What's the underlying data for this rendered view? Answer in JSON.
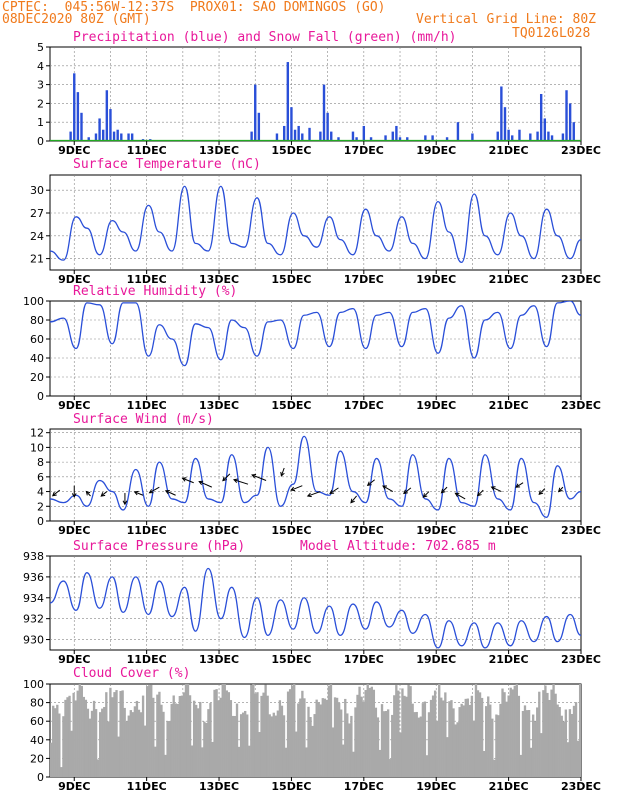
{
  "header": {
    "line1_left": "CPTEC:  045:56W-12:37S  PROX01: SAO DOMINGOS (GO)",
    "line2_left": "08DEC2020 80Z (GMT)",
    "line2_right": "Vertical Grid Line: 80Z",
    "code": "TQ0126L028"
  },
  "x_tick_labels": [
    "9DEC",
    "11DEC",
    "13DEC",
    "15DEC",
    "17DEC",
    "19DEC",
    "21DEC",
    "23DEC"
  ],
  "colors": {
    "header": "#f07a1c",
    "title": "#e8189a",
    "line": "#2a4fd8",
    "bar": "#2a4fd8",
    "snow": "#22aa22",
    "cloud": "#a9a9a9",
    "grid": "#888888"
  },
  "chart_data": [
    {
      "type": "bar",
      "title": "Precipitation (blue) and Snow Fall (green) (mm/h)",
      "ylim": [
        0,
        5
      ],
      "yticks": [
        0,
        1,
        2,
        3,
        4,
        5
      ],
      "x_range_days": [
        8.33,
        23.0
      ],
      "series": [
        {
          "name": "Precipitation",
          "x": [
            8.9,
            9.0,
            9.1,
            9.2,
            9.4,
            9.6,
            9.7,
            9.8,
            9.9,
            10.0,
            10.1,
            10.2,
            10.3,
            10.5,
            10.6,
            10.9,
            11.1,
            13.9,
            14.0,
            14.1,
            14.6,
            14.8,
            14.9,
            15.0,
            15.1,
            15.2,
            15.3,
            15.5,
            15.8,
            15.9,
            16.0,
            16.1,
            16.3,
            16.7,
            16.8,
            17.0,
            17.2,
            17.6,
            17.8,
            17.9,
            18.0,
            18.2,
            18.7,
            18.9,
            19.3,
            19.6,
            20.0,
            20.7,
            20.8,
            20.9,
            21.0,
            21.1,
            21.3,
            21.6,
            21.8,
            21.9,
            22.0,
            22.1,
            22.2,
            22.5,
            22.6,
            22.7,
            22.8
          ],
          "values": [
            0.5,
            3.6,
            2.6,
            1.5,
            0.2,
            0.4,
            1.2,
            0.6,
            2.7,
            1.7,
            0.5,
            0.6,
            0.4,
            0.4,
            0.4,
            0.1,
            0.1,
            0.5,
            3.0,
            1.5,
            0.4,
            0.8,
            4.2,
            1.8,
            0.6,
            0.8,
            0.4,
            0.7,
            0.5,
            3.0,
            1.5,
            0.5,
            0.2,
            0.5,
            0.2,
            0.8,
            0.2,
            0.3,
            0.5,
            0.8,
            0.2,
            0.2,
            0.3,
            0.3,
            0.2,
            1.0,
            0.4,
            0.5,
            2.9,
            1.8,
            0.6,
            0.3,
            0.6,
            0.4,
            0.5,
            2.5,
            1.2,
            0.5,
            0.3,
            0.4,
            2.7,
            2.0,
            1.0
          ]
        },
        {
          "name": "Snow Fall",
          "x": [],
          "values": []
        }
      ]
    },
    {
      "type": "line",
      "title": "Surface Temperature (nC)",
      "ylim": [
        19.5,
        32.0
      ],
      "yticks": [
        21,
        24,
        27,
        30
      ],
      "x": [
        8.33,
        8.7,
        9.05,
        9.35,
        9.7,
        10.05,
        10.35,
        10.7,
        11.05,
        11.35,
        11.7,
        12.05,
        12.35,
        12.7,
        13.05,
        13.35,
        13.7,
        14.05,
        14.35,
        14.7,
        15.05,
        15.35,
        15.7,
        16.05,
        16.35,
        16.7,
        17.05,
        17.35,
        17.7,
        18.05,
        18.35,
        18.7,
        19.05,
        19.35,
        19.7,
        20.05,
        20.35,
        20.7,
        21.05,
        21.35,
        21.7,
        22.05,
        22.35,
        22.7,
        23.0
      ],
      "values": [
        22.0,
        20.8,
        26.5,
        25.0,
        21.5,
        26.0,
        24.5,
        22.0,
        28.0,
        24.5,
        22.0,
        30.5,
        23.0,
        22.0,
        30.5,
        23.0,
        22.5,
        29.0,
        23.0,
        21.5,
        27.0,
        24.0,
        22.5,
        26.5,
        23.5,
        21.5,
        27.5,
        24.0,
        22.0,
        26.5,
        23.0,
        21.0,
        28.5,
        24.5,
        20.5,
        29.5,
        24.0,
        21.5,
        27.0,
        24.0,
        21.0,
        27.5,
        24.0,
        21.0,
        23.5
      ]
    },
    {
      "type": "line",
      "title": "Relative Humidity (%)",
      "ylim": [
        0,
        100
      ],
      "yticks": [
        0,
        20,
        40,
        60,
        80,
        100
      ],
      "x": [
        8.33,
        8.7,
        9.05,
        9.35,
        9.7,
        10.05,
        10.35,
        10.7,
        11.05,
        11.35,
        11.7,
        12.05,
        12.35,
        12.7,
        13.05,
        13.35,
        13.7,
        14.05,
        14.35,
        14.7,
        15.05,
        15.35,
        15.7,
        16.05,
        16.35,
        16.7,
        17.05,
        17.35,
        17.7,
        18.05,
        18.35,
        18.7,
        19.05,
        19.35,
        19.7,
        20.05,
        20.35,
        20.7,
        21.05,
        21.35,
        21.7,
        22.05,
        22.35,
        22.7,
        23.0
      ],
      "values": [
        78,
        82,
        50,
        98,
        96,
        55,
        98,
        98,
        42,
        75,
        60,
        32,
        76,
        72,
        38,
        80,
        72,
        42,
        78,
        80,
        50,
        85,
        88,
        52,
        88,
        92,
        50,
        85,
        88,
        52,
        88,
        92,
        45,
        82,
        95,
        40,
        80,
        88,
        50,
        85,
        95,
        52,
        98,
        100,
        85
      ]
    },
    {
      "type": "line",
      "title": "Surface Wind (m/s)",
      "ylim": [
        0,
        12.5
      ],
      "yticks": [
        0,
        2,
        4,
        6,
        8,
        10,
        12
      ],
      "x": [
        8.33,
        8.7,
        9.05,
        9.35,
        9.7,
        10.05,
        10.35,
        10.7,
        11.05,
        11.35,
        11.7,
        12.05,
        12.35,
        12.7,
        13.05,
        13.35,
        13.7,
        14.05,
        14.35,
        14.7,
        15.05,
        15.35,
        15.7,
        16.05,
        16.35,
        16.7,
        17.05,
        17.35,
        17.7,
        18.05,
        18.35,
        18.7,
        19.05,
        19.35,
        19.7,
        20.05,
        20.35,
        20.7,
        21.05,
        21.35,
        21.7,
        22.05,
        22.35,
        22.7,
        23.0
      ],
      "values": [
        3.0,
        2.5,
        3.5,
        2.0,
        5.5,
        4.0,
        1.5,
        7.0,
        2.0,
        8.0,
        3.0,
        2.5,
        8.5,
        3.0,
        2.5,
        9.0,
        2.5,
        3.5,
        10.0,
        2.0,
        5.0,
        11.5,
        4.0,
        3.5,
        9.5,
        4.0,
        2.5,
        8.5,
        3.0,
        2.0,
        9.0,
        3.0,
        1.5,
        8.5,
        2.5,
        2.0,
        9.0,
        3.0,
        1.5,
        8.5,
        2.5,
        0.5,
        7.5,
        3.0,
        4.0
      ]
    },
    {
      "type": "line",
      "title": "Surface Pressure (hPa)",
      "annotation": "Model Altitude: 702.685 m",
      "ylim": [
        929.0,
        938.0
      ],
      "yticks": [
        930,
        932,
        934,
        936,
        938
      ],
      "x": [
        8.33,
        8.7,
        9.05,
        9.35,
        9.7,
        10.05,
        10.35,
        10.7,
        11.05,
        11.35,
        11.7,
        12.05,
        12.35,
        12.7,
        13.05,
        13.35,
        13.7,
        14.05,
        14.35,
        14.7,
        15.05,
        15.35,
        15.7,
        16.05,
        16.35,
        16.7,
        17.05,
        17.35,
        17.7,
        18.05,
        18.35,
        18.7,
        19.05,
        19.35,
        19.7,
        20.05,
        20.35,
        20.7,
        21.05,
        21.35,
        21.7,
        22.05,
        22.35,
        22.7,
        23.0
      ],
      "values": [
        933.5,
        935.6,
        932.8,
        936.4,
        933.0,
        936.0,
        932.6,
        936.0,
        932.4,
        935.6,
        932.2,
        935.0,
        930.8,
        936.8,
        932.0,
        935.0,
        930.2,
        934.0,
        930.4,
        933.8,
        931.0,
        934.0,
        930.6,
        933.2,
        930.4,
        933.4,
        931.0,
        933.6,
        931.2,
        932.8,
        930.6,
        932.4,
        929.2,
        931.8,
        929.4,
        931.6,
        929.2,
        931.6,
        929.4,
        931.8,
        929.8,
        932.2,
        929.8,
        932.4,
        930.4
      ]
    },
    {
      "type": "bar",
      "title": "Cloud Cover (%)",
      "ylim": [
        0,
        100
      ],
      "yticks": [
        0,
        20,
        40,
        60,
        80,
        100
      ],
      "x_range_days": [
        8.33,
        23.0
      ],
      "note": "bars of cloud cover percentage, mostly 70-100% with fluctuations"
    }
  ]
}
